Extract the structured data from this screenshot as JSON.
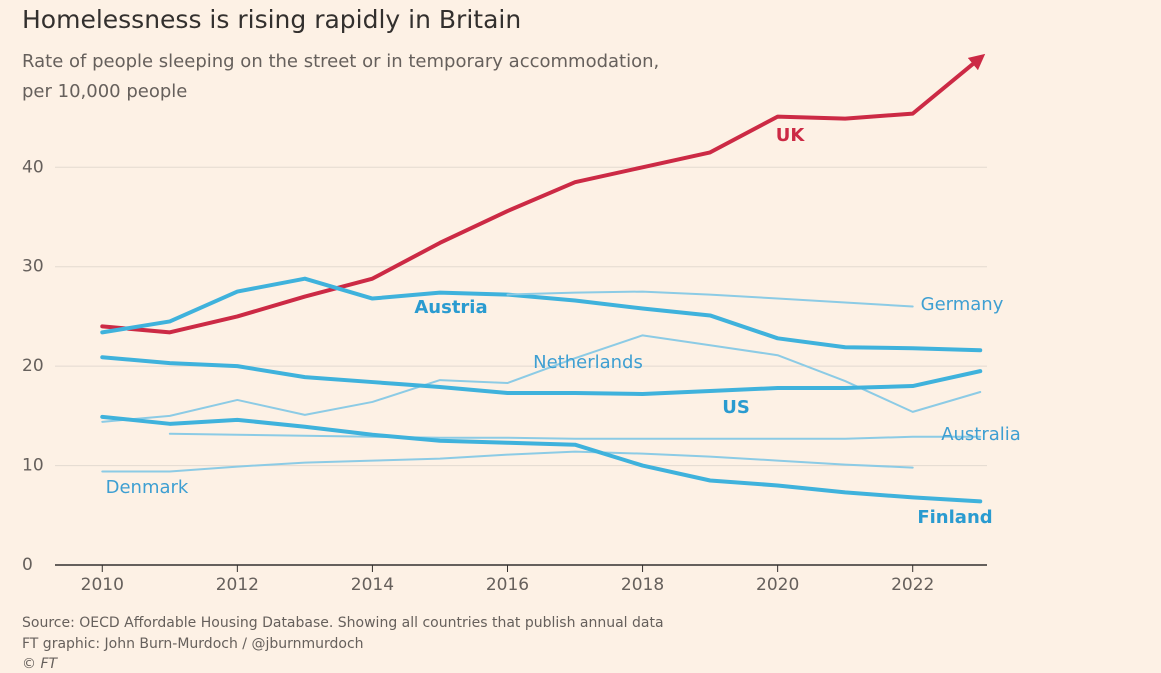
{
  "chart_data": {
    "type": "line",
    "title": "Homelessness is rising rapidly in Britain",
    "subtitle": [
      "Rate of people sleeping on the street or in temporary accommodation,",
      "per 10,000 people"
    ],
    "notes": [
      "Source: OECD Affordable Housing Database. Showing all countries that publish annual data",
      "FT graphic: John Burn-Murdoch / @jburnmurdoch",
      "© FT"
    ],
    "x": [
      2010,
      2011,
      2012,
      2013,
      2014,
      2015,
      2016,
      2017,
      2018,
      2019,
      2020,
      2021,
      2022,
      2023
    ],
    "xlim": [
      2009.3,
      2023.1
    ],
    "xticks": [
      2010,
      2012,
      2014,
      2016,
      2018,
      2020,
      2022
    ],
    "ylim": [
      0,
      52
    ],
    "yticks": [
      0,
      10,
      20,
      30,
      40
    ],
    "grid": true,
    "series": [
      {
        "name": "UK",
        "color": "#cc2a45",
        "linewidth": 4,
        "arrow": true,
        "values": [
          24,
          23.4,
          25,
          27,
          28.8,
          32.4,
          35.6,
          38.5,
          40,
          41.5,
          45.1,
          44.9,
          45.4,
          51
        ]
      },
      {
        "name": "Austria",
        "color": "#3fb2dc",
        "linewidth": 4,
        "values": [
          23.4,
          24.5,
          27.5,
          28.8,
          26.8,
          27.4,
          27.2,
          26.6,
          25.8,
          25.1,
          22.8,
          21.9,
          21.8,
          21.6
        ]
      },
      {
        "name": "Germany",
        "color": "#8ccbe5",
        "linewidth": 2,
        "values": [
          null,
          null,
          null,
          null,
          null,
          null,
          27.2,
          27.4,
          27.5,
          27.2,
          26.8,
          26.4,
          26.0,
          null
        ]
      },
      {
        "name": "Netherlands",
        "color": "#8ccbe5",
        "linewidth": 2,
        "values": [
          14.4,
          15.0,
          16.6,
          15.1,
          16.4,
          18.6,
          18.3,
          20.8,
          23.1,
          22.1,
          21.1,
          18.5,
          15.4,
          17.4
        ]
      },
      {
        "name": "US",
        "color": "#3fb2dc",
        "linewidth": 4,
        "values": [
          20.9,
          20.3,
          20.0,
          18.9,
          18.4,
          17.9,
          17.3,
          17.3,
          17.2,
          17.5,
          17.8,
          17.8,
          18.0,
          19.5
        ]
      },
      {
        "name": "Australia",
        "color": "#8ccbe5",
        "linewidth": 2,
        "values": [
          null,
          13.2,
          13.1,
          13.0,
          12.9,
          12.8,
          12.8,
          12.7,
          12.7,
          12.7,
          12.7,
          12.7,
          12.9,
          12.9
        ]
      },
      {
        "name": "Denmark",
        "color": "#8ccbe5",
        "linewidth": 2,
        "values": [
          9.4,
          9.4,
          9.9,
          10.3,
          10.5,
          10.7,
          11.1,
          11.4,
          11.2,
          10.9,
          10.5,
          10.1,
          9.8,
          null
        ]
      },
      {
        "name": "Finland",
        "color": "#3fb2dc",
        "linewidth": 4,
        "values": [
          14.9,
          14.2,
          14.6,
          13.9,
          13.1,
          12.5,
          12.3,
          12.1,
          10.0,
          8.5,
          8.0,
          7.3,
          6.8,
          6.4
        ]
      }
    ]
  }
}
